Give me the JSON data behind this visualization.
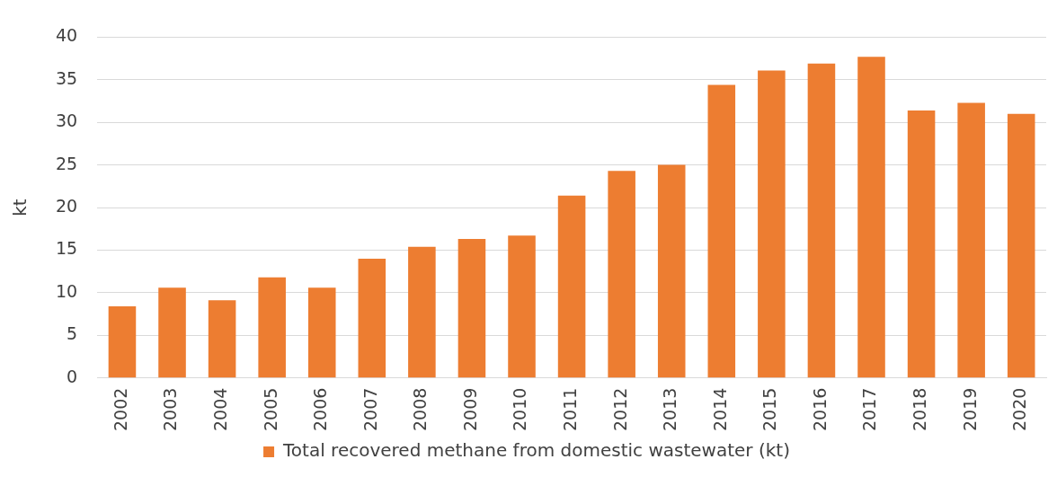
{
  "chart_data": {
    "type": "bar",
    "ylabel": "kt",
    "categories": [
      "2002",
      "2003",
      "2004",
      "2005",
      "2006",
      "2007",
      "2008",
      "2009",
      "2010",
      "2011",
      "2012",
      "2013",
      "2014",
      "2015",
      "2016",
      "2017",
      "2018",
      "2019",
      "2020"
    ],
    "series": [
      {
        "name": "Total recovered methane from domestic wastewater (kt)",
        "color": "#ed7d31",
        "values": [
          8.4,
          10.6,
          9.1,
          11.8,
          10.6,
          14.0,
          15.4,
          16.3,
          16.7,
          21.4,
          24.3,
          25.0,
          34.4,
          36.1,
          36.9,
          37.7,
          31.4,
          32.3,
          31.0
        ]
      }
    ],
    "ylim": [
      0,
      40
    ],
    "yticks": [
      0,
      5,
      10,
      15,
      20,
      25,
      30,
      35,
      40
    ],
    "grid": "y",
    "legend": "bottom"
  }
}
